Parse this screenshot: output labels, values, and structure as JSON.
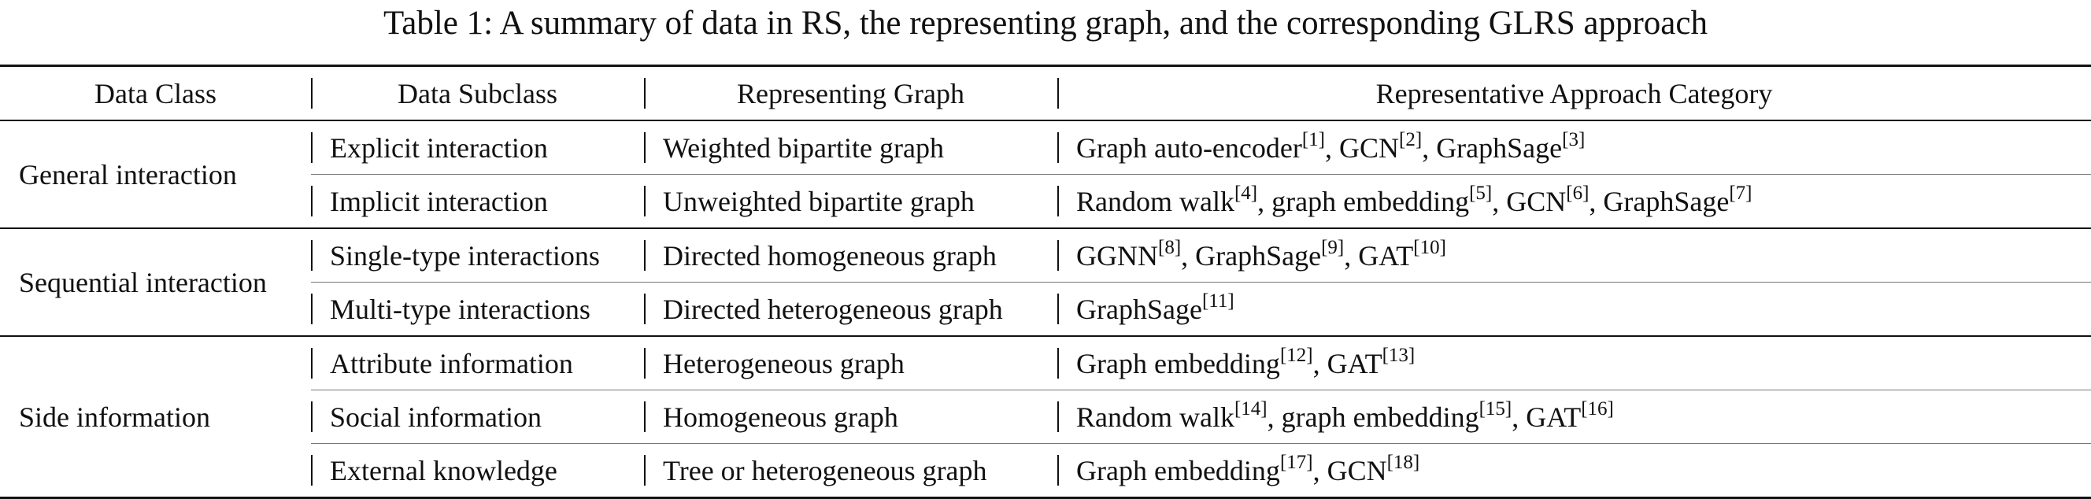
{
  "caption": "Table 1: A summary of data in RS, the representing graph, and the corresponding GLRS approach",
  "headers": [
    "Data Class",
    "Data Subclass",
    "Representing Graph",
    "Representative Approach Category"
  ],
  "groups": [
    {
      "class": "General interaction",
      "rows": [
        {
          "subclass": "Explicit interaction",
          "graph": "Weighted bipartite graph",
          "approaches": [
            {
              "name": "Graph auto-encoder",
              "ref": "[1]"
            },
            {
              "name": "GCN",
              "ref": "[2]"
            },
            {
              "name": "GraphSage",
              "ref": "[3]"
            }
          ]
        },
        {
          "subclass": "Implicit interaction",
          "graph": "Unweighted bipartite graph",
          "approaches": [
            {
              "name": "Random walk",
              "ref": "[4]"
            },
            {
              "name": "graph embedding",
              "ref": "[5]"
            },
            {
              "name": "GCN",
              "ref": "[6]"
            },
            {
              "name": "GraphSage",
              "ref": "[7]"
            }
          ]
        }
      ]
    },
    {
      "class": "Sequential interaction",
      "rows": [
        {
          "subclass": "Single-type interactions",
          "graph": "Directed homogeneous graph",
          "approaches": [
            {
              "name": "GGNN",
              "ref": "[8]"
            },
            {
              "name": "GraphSage",
              "ref": "[9]"
            },
            {
              "name": "GAT",
              "ref": "[10]"
            }
          ]
        },
        {
          "subclass": "Multi-type interactions",
          "graph": "Directed heterogeneous graph",
          "approaches": [
            {
              "name": "GraphSage",
              "ref": "[11]"
            }
          ]
        }
      ]
    },
    {
      "class": "Side information",
      "rows": [
        {
          "subclass": "Attribute information",
          "graph": "Heterogeneous graph",
          "approaches": [
            {
              "name": "Graph embedding",
              "ref": "[12]"
            },
            {
              "name": "GAT",
              "ref": "[13]"
            }
          ]
        },
        {
          "subclass": "Social information",
          "graph": "Homogeneous graph",
          "approaches": [
            {
              "name": "Random walk",
              "ref": "[14]"
            },
            {
              "name": "graph embedding",
              "ref": "[15]"
            },
            {
              "name": "GAT",
              "ref": "[16]"
            }
          ]
        },
        {
          "subclass": "External knowledge",
          "graph": "Tree or heterogeneous graph",
          "approaches": [
            {
              "name": "Graph embedding",
              "ref": "[17]"
            },
            {
              "name": "GCN",
              "ref": "[18]"
            }
          ]
        }
      ]
    }
  ]
}
